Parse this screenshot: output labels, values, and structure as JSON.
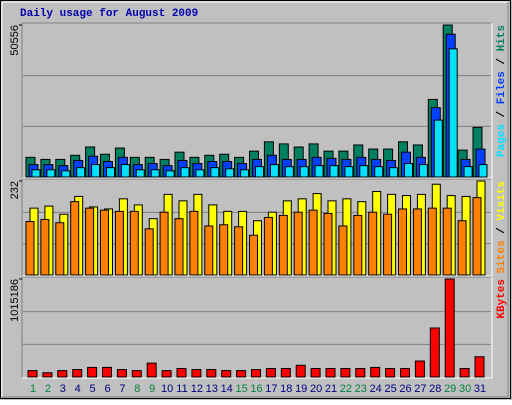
{
  "title": "Daily usage for August 2009",
  "legend_separator": " / ",
  "chart_data": [
    {
      "type": "bar",
      "ylim": [
        0,
        50556
      ],
      "yticks": [
        50556
      ],
      "series": [
        {
          "name": "Hits",
          "color": "#008060",
          "values": [
            6536,
            5848,
            5848,
            7224,
            9976,
            7568,
            9632,
            6536,
            6536,
            5848,
            8256,
            6536,
            7224,
            7568,
            6536,
            8600,
            11696,
            11008,
            9976,
            11008,
            8600,
            8600,
            10664,
            9288,
            9288,
            11696,
            10664,
            25800,
            50556,
            8944,
            16512
          ]
        },
        {
          "name": "Files",
          "color": "#0040ff",
          "values": [
            4128,
            4128,
            3784,
            5504,
            6880,
            5160,
            6536,
            4128,
            4472,
            3784,
            5504,
            4472,
            5160,
            5160,
            4472,
            5848,
            7224,
            5848,
            5848,
            6536,
            6192,
            5848,
            6536,
            5848,
            5504,
            8256,
            6536,
            23048,
            47472,
            5848,
            9288
          ]
        },
        {
          "name": "Pages",
          "color": "#00e0ff",
          "values": [
            2408,
            2408,
            2064,
            3096,
            4128,
            3096,
            4128,
            2408,
            2408,
            2064,
            3096,
            2408,
            3096,
            2752,
            2408,
            3440,
            4128,
            3440,
            3440,
            3784,
            3784,
            3440,
            3784,
            3440,
            3096,
            4472,
            4128,
            18920,
            42656,
            3440,
            4128
          ]
        }
      ]
    },
    {
      "type": "bar",
      "ylim": [
        0,
        232
      ],
      "yticks": [
        232
      ],
      "series": [
        {
          "name": "Visits",
          "color": "#ffff00",
          "values": [
            165,
            170,
            150,
            194,
            168,
            163,
            188,
            173,
            139,
            199,
            183,
            199,
            173,
            157,
            157,
            134,
            155,
            183,
            188,
            201,
            183,
            188,
            181,
            206,
            199,
            196,
            199,
            224,
            196,
            194,
            232
          ]
        },
        {
          "name": "Sites",
          "color": "#ff8000",
          "values": [
            132,
            137,
            129,
            181,
            165,
            160,
            157,
            157,
            114,
            155,
            139,
            157,
            121,
            124,
            119,
            98,
            142,
            147,
            155,
            160,
            152,
            121,
            147,
            155,
            150,
            163,
            163,
            165,
            165,
            134,
            191
          ]
        }
      ]
    },
    {
      "type": "bar",
      "ylim": [
        0,
        1015186
      ],
      "yticks": [
        1015186
      ],
      "categories": [
        "1",
        "2",
        "3",
        "4",
        "5",
        "6",
        "7",
        "8",
        "9",
        "10",
        "11",
        "12",
        "13",
        "14",
        "15",
        "16",
        "17",
        "18",
        "19",
        "20",
        "21",
        "22",
        "23",
        "24",
        "25",
        "26",
        "27",
        "28",
        "29",
        "30",
        "31"
      ],
      "category_colors": [
        "#008040",
        "#008040",
        "#000080",
        "#000080",
        "#000080",
        "#000080",
        "#000080",
        "#008040",
        "#008040",
        "#000080",
        "#000080",
        "#000080",
        "#000080",
        "#000080",
        "#008040",
        "#008040",
        "#000080",
        "#000080",
        "#000080",
        "#000080",
        "#000080",
        "#008040",
        "#008040",
        "#000080",
        "#000080",
        "#000080",
        "#000080",
        "#000080",
        "#008040",
        "#008040",
        "#000080"
      ],
      "series": [
        {
          "name": "KBytes",
          "color": "#ff0000",
          "values": [
            66210,
            44140,
            66210,
            77245,
            99315,
            99315,
            77245,
            66210,
            143455,
            66210,
            88280,
            77245,
            77245,
            66210,
            66210,
            77245,
            88280,
            88280,
            121385,
            88280,
            88280,
            88280,
            88280,
            99315,
            88280,
            88280,
            165525,
            507610,
            1015186,
            88280,
            209665
          ]
        }
      ]
    }
  ]
}
